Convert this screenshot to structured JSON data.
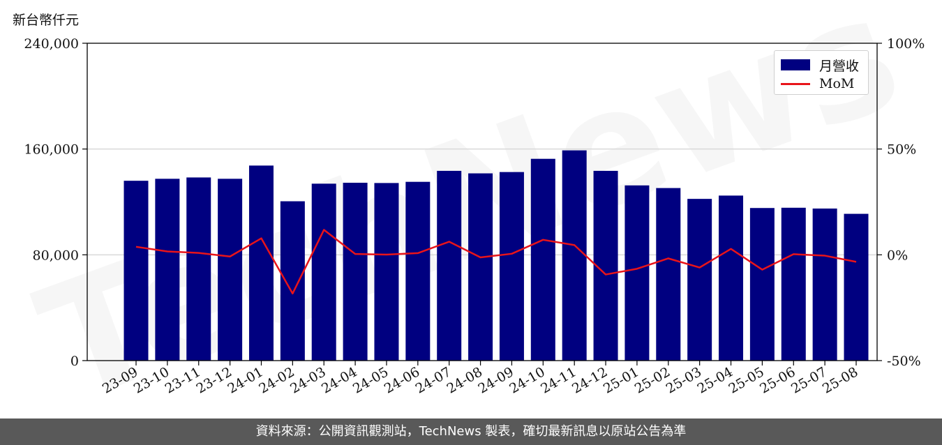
{
  "unit_label": "新台幣仟元",
  "footer": "資料來源：公開資訊觀測站，TechNews 製表，確切最新訊息以原站公告為準",
  "watermark": "TechNews",
  "colors": {
    "bar": "#000080",
    "line": "#e8141a",
    "footer_bg": "#595959",
    "grid": "#d9d9d9"
  },
  "chart_data": {
    "type": "bar",
    "categories": [
      "23-09",
      "23-10",
      "23-11",
      "23-12",
      "24-01",
      "24-02",
      "24-03",
      "24-04",
      "24-05",
      "24-06",
      "24-07",
      "24-08",
      "24-09",
      "24-10",
      "24-11",
      "24-12",
      "25-01",
      "25-02",
      "25-03",
      "25-04",
      "25-05",
      "25-06",
      "25-07",
      "25-08"
    ],
    "series": [
      {
        "name": "月營收",
        "type": "bar",
        "axis": "left",
        "values": [
          136000,
          137500,
          138500,
          137500,
          147500,
          120500,
          133800,
          134500,
          134300,
          135200,
          143500,
          141600,
          142600,
          152600,
          159000,
          143500,
          132500,
          130500,
          122300,
          124800,
          115400,
          115600,
          115000,
          111000
        ]
      },
      {
        "name": "MoM",
        "type": "line",
        "axis": "right",
        "values": [
          3.8,
          1.6,
          0.9,
          -0.8,
          7.8,
          -18.3,
          11.8,
          0.4,
          0.1,
          0.8,
          6.2,
          -1.2,
          0.5,
          7.1,
          4.6,
          -9.3,
          -6.6,
          -1.7,
          -6.0,
          2.8,
          -7.0,
          0.3,
          -0.4,
          -3.3
        ]
      }
    ],
    "y_left": {
      "range": [
        0,
        240000
      ],
      "ticks": [
        "0",
        "80,000",
        "160,000",
        "240,000"
      ]
    },
    "y_right": {
      "range": [
        -50,
        100
      ],
      "ticks": [
        "-50%",
        "0%",
        "50%",
        "100%"
      ]
    },
    "grid": "horizontal",
    "legend_position": "top-right"
  }
}
